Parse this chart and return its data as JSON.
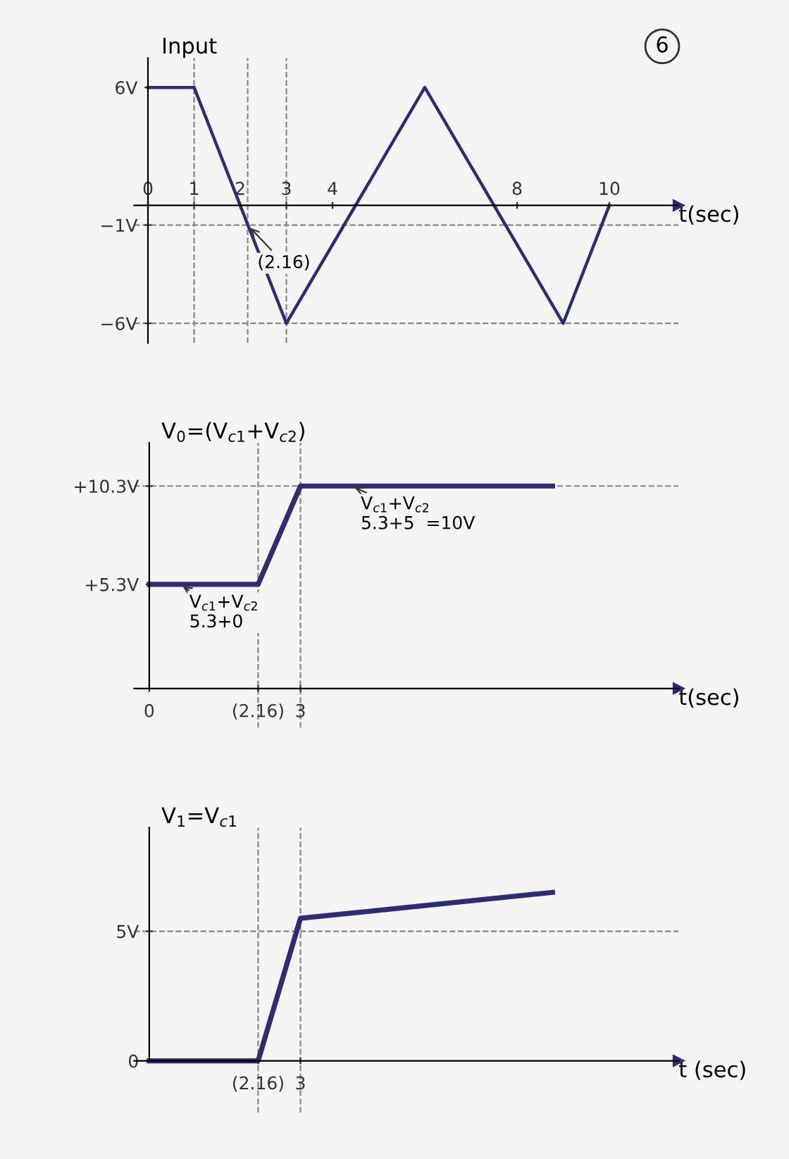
{
  "chart_data": [
    {
      "type": "line",
      "ylabel": "Input",
      "xlabel": "t(sec)",
      "x": [
        0,
        1,
        3,
        6,
        9,
        10
      ],
      "series": [
        {
          "color": "#2f2d6e",
          "values": [
            6,
            6,
            -6,
            6,
            -6,
            0
          ]
        }
      ],
      "xlim": [
        -0.3,
        11.5
      ],
      "xticks": [
        0,
        1,
        2,
        3,
        4,
        8,
        10
      ],
      "ylim": [
        -7,
        7.5
      ],
      "yticks": [
        {
          "value": 6,
          "label": "6V"
        },
        {
          "value": -1,
          "label": "−1V"
        },
        {
          "value": -6,
          "label": "−6V"
        }
      ],
      "ref_lines": [
        {
          "axis": "x",
          "value": 1,
          "color": "#888888",
          "line_style": "dashed"
        },
        {
          "axis": "x",
          "value": 2.16,
          "color": "#888888",
          "line_style": "dashed"
        },
        {
          "axis": "x",
          "value": 3,
          "color": "#888888",
          "line_style": "dashed"
        },
        {
          "axis": "y",
          "value": -1,
          "color": "#888888",
          "line_style": "dashed"
        },
        {
          "axis": "y",
          "value": -6,
          "color": "#888888",
          "line_style": "dashed"
        }
      ],
      "annotations": [
        {
          "text": "(2.16)",
          "x": 2.16,
          "y": -1
        },
        "6"
      ],
      "grid": false,
      "legend": false
    },
    {
      "type": "line",
      "ylabel": "V$_{0}$=(V$_{c1}$+V$_{c2}$)",
      "xlabel": "t(sec)",
      "x": [
        0,
        2.16,
        3,
        8
      ],
      "series": [
        {
          "color": "#2f2d6e",
          "values": [
            5.3,
            5.3,
            10.3,
            10.3
          ]
        }
      ],
      "xlim": [
        -0.3,
        10.5
      ],
      "xticks": [
        0,
        {
          "value": 2.16,
          "label": "(2.16)"
        },
        3
      ],
      "ylim": [
        -2,
        12.5
      ],
      "yticks": [
        {
          "value": 10.3,
          "label": "+10.3V"
        },
        {
          "value": 5.3,
          "label": "+5.3V"
        }
      ],
      "ref_lines": [
        {
          "axis": "x",
          "value": 2.16,
          "color": "#888888",
          "line_style": "dashed"
        },
        {
          "axis": "x",
          "value": 3,
          "color": "#888888",
          "line_style": "dashed"
        },
        {
          "axis": "y",
          "value": 10.3,
          "color": "#888888",
          "line_style": "dashed"
        }
      ],
      "annotations": [
        {
          "text": "V$_{c1}$+V$_{c2}$\n5.3+0",
          "x": 0.6,
          "y": 5.3
        },
        {
          "text": "V$_{c1}$+V$_{c2}$\n5.3+5  =10V",
          "x": 4,
          "y": 10.3
        }
      ],
      "grid": false,
      "legend": false
    },
    {
      "type": "line",
      "ylabel": "V$_{1}$=V$_{c1}$",
      "xlabel": "t (sec)",
      "x": [
        0,
        2.16,
        3,
        8
      ],
      "series": [
        {
          "color": "#2f2d6e",
          "values": [
            0,
            0,
            5.5,
            6.5
          ]
        }
      ],
      "xlim": [
        -0.3,
        10.5
      ],
      "xticks": [
        {
          "value": 2.16,
          "label": "(2.16)"
        },
        3
      ],
      "ylim": [
        -2,
        9
      ],
      "yticks": [
        0,
        {
          "value": 5,
          "label": "5V"
        }
      ],
      "ref_lines": [
        {
          "axis": "x",
          "value": 2.16,
          "color": "#888888",
          "line_style": "dashed"
        },
        {
          "axis": "x",
          "value": 3,
          "color": "#888888",
          "line_style": "dashed"
        },
        {
          "axis": "y",
          "value": 5,
          "color": "#888888",
          "line_style": "dashed"
        }
      ],
      "grid": false,
      "legend": false
    }
  ]
}
